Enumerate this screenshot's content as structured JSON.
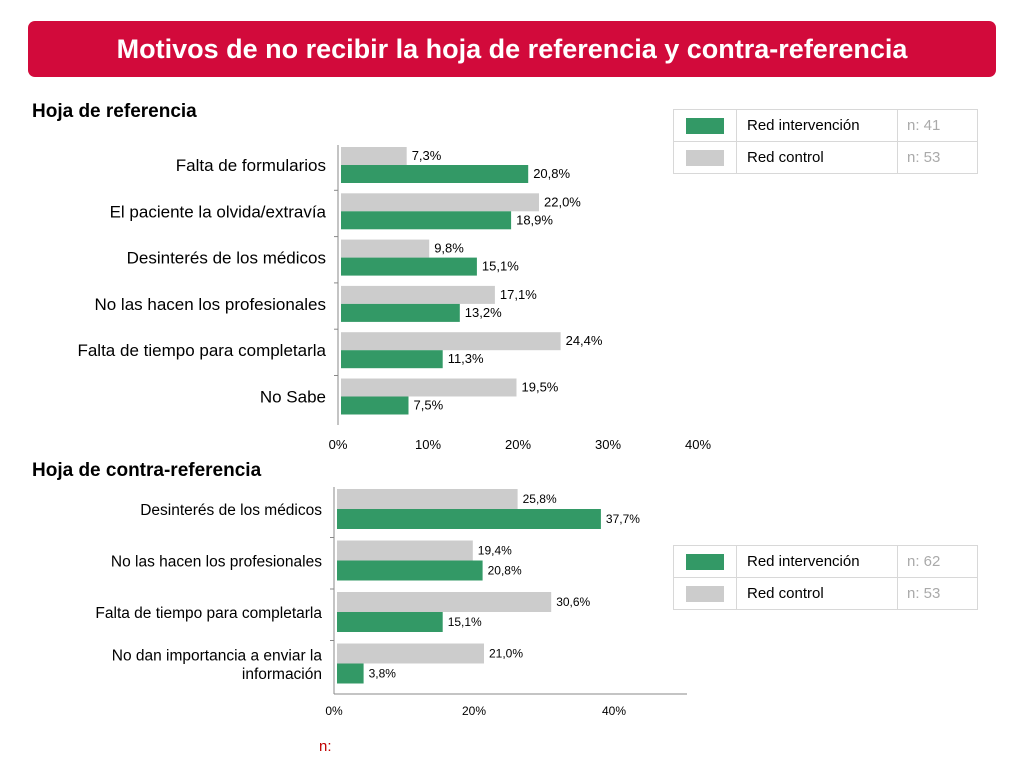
{
  "title": "Motivos de no recibir la hoja de referencia y contra-referencia",
  "colors": {
    "intervention": "#339966",
    "control": "#cccccc",
    "banner": "#d20a3b"
  },
  "legend_top": {
    "rows": [
      {
        "label": "Red intervención",
        "n": "n: 41",
        "series": "intervention"
      },
      {
        "label": "Red control",
        "n": "n: 53",
        "series": "control"
      }
    ]
  },
  "legend_bottom": {
    "rows": [
      {
        "label": "Red intervención",
        "n": "n: 62",
        "series": "intervention"
      },
      {
        "label": "Red control",
        "n": "n: 53",
        "series": "control"
      }
    ]
  },
  "footer_n": "n:",
  "chart_data": [
    {
      "type": "bar",
      "orientation": "horizontal",
      "title": "Hoja de referencia",
      "categories": [
        "Falta de formularios",
        "El paciente la olvida/extravía",
        "Desinterés de los médicos",
        "No las hacen los profesionales",
        "Falta de tiempo para completarla",
        "No Sabe"
      ],
      "series": [
        {
          "name": "Red control",
          "values": [
            7.3,
            22.0,
            9.8,
            17.1,
            24.4,
            19.5
          ],
          "labels": [
            "7,3%",
            "22,0%",
            "9,8%",
            "17,1%",
            "24,4%",
            "19,5%"
          ]
        },
        {
          "name": "Red intervención",
          "values": [
            20.8,
            18.9,
            15.1,
            13.2,
            11.3,
            7.5
          ],
          "labels": [
            "20,8%",
            "18,9%",
            "15,1%",
            "13,2%",
            "11,3%",
            "7,5%"
          ]
        }
      ],
      "xlim": [
        0,
        40
      ],
      "xticks": [
        "0%",
        "10%",
        "20%",
        "30%",
        "40%"
      ]
    },
    {
      "type": "bar",
      "orientation": "horizontal",
      "title": "Hoja de contra-referencia",
      "categories": [
        "Desinterés de los médicos",
        "No las hacen los profesionales",
        "Falta de tiempo para completarla",
        "No dan importancia a enviar la información"
      ],
      "series": [
        {
          "name": "Red control",
          "values": [
            25.8,
            19.4,
            30.6,
            21.0
          ],
          "labels": [
            "25,8%",
            "19,4%",
            "30,6%",
            "21,0%"
          ]
        },
        {
          "name": "Red intervención",
          "values": [
            37.7,
            20.8,
            15.1,
            3.8
          ],
          "labels": [
            "37,7%",
            "20,8%",
            "15,1%",
            "3,8%"
          ]
        }
      ],
      "xlim": [
        0,
        50
      ],
      "xticks": [
        "0%",
        "20%",
        "40%"
      ]
    }
  ]
}
